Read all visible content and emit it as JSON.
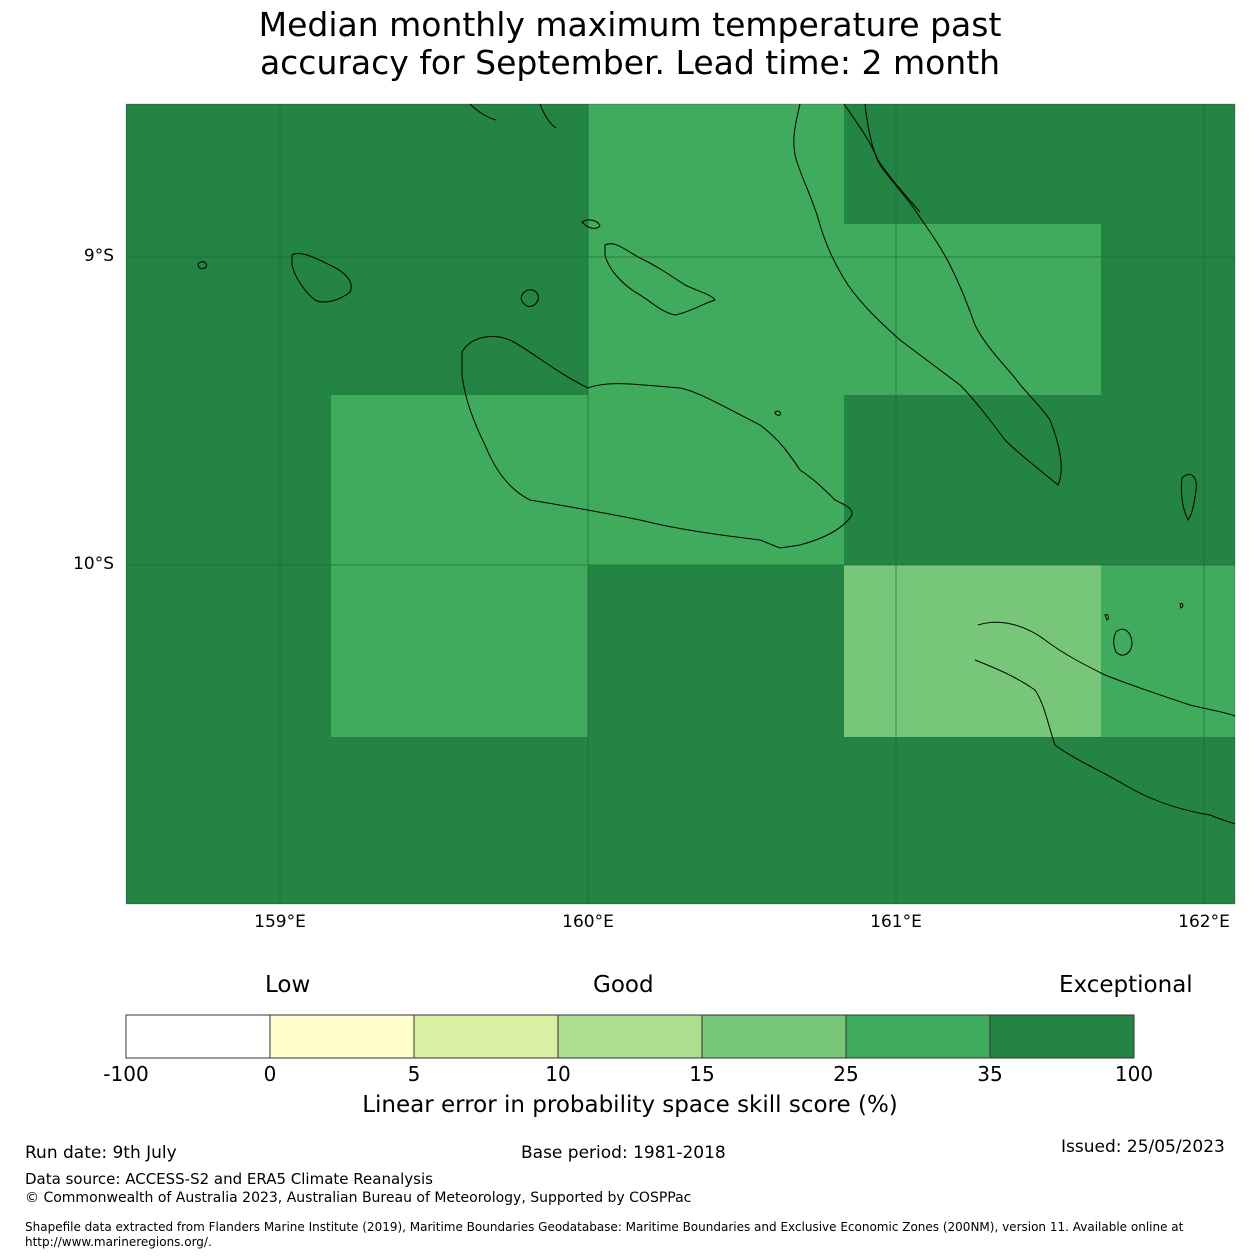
{
  "title_line1": "Median monthly maximum temperature past",
  "title_line2": "accuracy for September. Lead time: 2 month",
  "map": {
    "lat_labels": [
      "9°S",
      "10°S"
    ],
    "lon_labels": [
      "159°E",
      "160°E",
      "161°E",
      "162°E"
    ],
    "colors": {
      "exceptional": "#238443",
      "very_good": "#41ab5d",
      "good": "#78c679"
    }
  },
  "colorbar": {
    "categories": [
      "Low",
      "Good",
      "Exceptional"
    ],
    "ticks": [
      "-100",
      "0",
      "5",
      "10",
      "15",
      "25",
      "35",
      "100"
    ],
    "colors": [
      "#ffffff",
      "#ffffcc",
      "#d9f0a3",
      "#addd8e",
      "#78c679",
      "#41ab5d",
      "#238443"
    ],
    "label": "Linear error in probability space skill score (%)"
  },
  "footer": {
    "run_date": "Run date: 9th July",
    "base_period": "Base period: 1981-2018",
    "issued": "Issued: 25/05/2023",
    "data_source": "Data source: ACCESS-S2 and ERA5 Climate Reanalysis",
    "copyright": "© Commonwealth of Australia 2023, Australian Bureau of Meteorology, Supported by COSPPac",
    "shapefile": "Shapefile data extracted from Flanders Marine Institute (2019), Maritime Boundaries Geodatabase: Maritime Boundaries and Exclusive Economic Zones (200NM), version 11. Available online at http://www.marineregions.org/."
  }
}
